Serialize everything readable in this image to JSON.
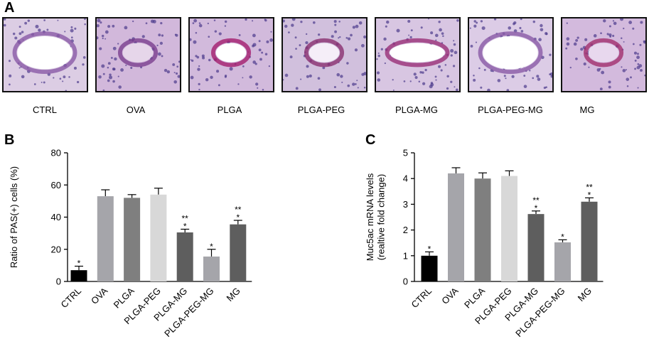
{
  "panels": {
    "a": "A",
    "b": "B",
    "c": "C"
  },
  "micrographs": [
    {
      "label": "CTRL",
      "tissue": "#c7b2d6",
      "lumen": "#ffffff",
      "stain": "#8a5aa6"
    },
    {
      "label": "OVA",
      "tissue": "#b58cc4",
      "lumen": "#e6d6ea",
      "stain": "#7b3f8f"
    },
    {
      "label": "PLGA",
      "tissue": "#b48fc7",
      "lumen": "#ffffff",
      "stain": "#a41e6e"
    },
    {
      "label": "PLGA-PEG",
      "tissue": "#b29ac8",
      "lumen": "#f5eef8",
      "stain": "#8a2f70"
    },
    {
      "label": "PLGA-MG",
      "tissue": "#c0a6d2",
      "lumen": "#ffffff",
      "stain": "#9a2f78"
    },
    {
      "label": "PLGA-PEG-MG",
      "tissue": "#c6b0d8",
      "lumen": "#ffffff",
      "stain": "#8a5aa6"
    },
    {
      "label": "MG",
      "tissue": "#b690c8",
      "lumen": "#e8d8ee",
      "stain": "#a3306e"
    }
  ],
  "chart_data": [
    {
      "type": "bar",
      "panel": "B",
      "ylabel": "Ratio of PAS(+) cells (%)",
      "ylim": [
        0,
        80
      ],
      "yticks": [
        0,
        20,
        40,
        60,
        80
      ],
      "categories": [
        "CTRL",
        "OVA",
        "PLGA",
        "PLGA-PEG",
        "PLGA-MG",
        "PLGA-PEG-MG",
        "MG"
      ],
      "values": [
        7,
        53,
        52,
        54,
        30.5,
        15.5,
        35.5
      ],
      "errors": [
        2.5,
        4,
        2,
        4,
        2,
        4.5,
        2.5
      ],
      "significance": [
        "*",
        "",
        "",
        "",
        "**\n*",
        "*",
        "**\n*"
      ],
      "colors": [
        "#000000",
        "#a5a5aa",
        "#7f7f7f",
        "#d8d8d8",
        "#5e5e5e",
        "#a5a5aa",
        "#5e5e5e"
      ]
    },
    {
      "type": "bar",
      "panel": "C",
      "ylabel": "Muc5ac mRNA levels\n(realtive fold change)",
      "ylim": [
        0,
        5
      ],
      "yticks": [
        0,
        1,
        2,
        3,
        4,
        5
      ],
      "categories": [
        "CTRL",
        "OVA",
        "PLGA",
        "PLGA-PEG",
        "PLGA-MG",
        "PLGA-PEG-MG",
        "MG"
      ],
      "values": [
        1.0,
        4.2,
        4.0,
        4.1,
        2.62,
        1.52,
        3.1
      ],
      "errors": [
        0.15,
        0.22,
        0.22,
        0.2,
        0.12,
        0.1,
        0.15
      ],
      "significance": [
        "*",
        "",
        "",
        "",
        "**\n*",
        "*",
        "**\n*"
      ],
      "colors": [
        "#000000",
        "#a5a5aa",
        "#7f7f7f",
        "#d8d8d8",
        "#5e5e5e",
        "#a5a5aa",
        "#5e5e5e"
      ]
    }
  ]
}
